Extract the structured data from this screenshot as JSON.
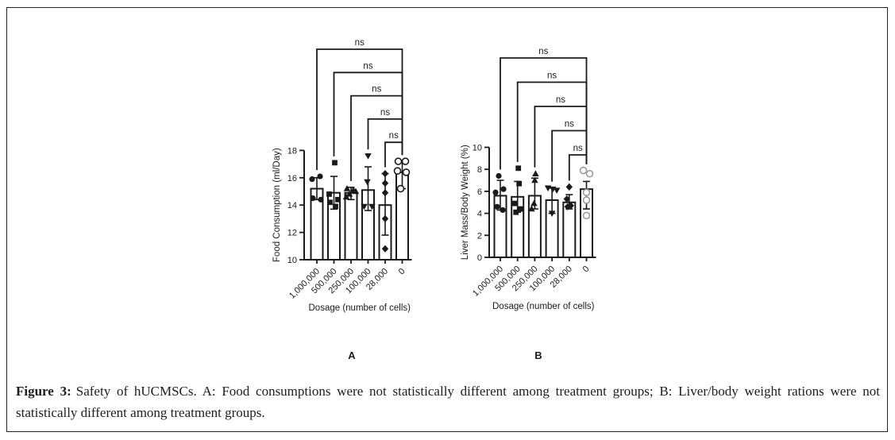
{
  "figure": {
    "caption": {
      "prefix": "Figure 3:",
      "body": "Safety of hUCMSCs. A: Food consumptions were not statistically different among treatment groups; B: Liver/body weight rations were not statistically different among treatment groups."
    }
  },
  "chart_data": [
    {
      "panel_label": "A",
      "type": "bar",
      "ylabel": "Food Consumption (ml/Day)",
      "xlabel": "Dosage (number of cells)",
      "categories": [
        "1,000,000",
        "500,000",
        "250,000",
        "100,000",
        "28,000",
        "0"
      ],
      "ylim": [
        10,
        18
      ],
      "yticks": [
        10,
        12,
        14,
        16,
        18
      ],
      "colors": {
        "bar_fill": "#ffffff",
        "stroke": "#1a1a1a",
        "open_marker": "#1a1a1a"
      },
      "bars": [
        {
          "category": "1,000,000",
          "mean": 15.2,
          "err": [
            14.4,
            16.0
          ],
          "marker": "circle",
          "points": [
            15.9,
            16.1,
            14.5,
            14.4
          ],
          "jitter": [
            -6,
            4,
            -5,
            5
          ]
        },
        {
          "category": "500,000",
          "mean": 14.9,
          "err": [
            13.7,
            16.1
          ],
          "marker": "square",
          "points": [
            17.1,
            14.8,
            14.4,
            14.2,
            13.9
          ],
          "jitter": [
            1,
            -6,
            5,
            -5,
            2
          ]
        },
        {
          "category": "250,000",
          "mean": 14.9,
          "err": [
            14.4,
            15.3
          ],
          "marker": "triangle",
          "points": [
            15.2,
            15.1,
            15.0,
            14.8,
            14.6
          ],
          "jitter": [
            -5,
            3,
            6,
            -2,
            -6
          ]
        },
        {
          "category": "100,000",
          "mean": 15.1,
          "err": [
            13.6,
            16.8
          ],
          "marker": "triangle-down",
          "points": [
            17.6,
            15.7,
            13.9,
            13.9
          ],
          "jitter": [
            0,
            -1,
            -5,
            5
          ]
        },
        {
          "category": "28,000",
          "mean": 14.0,
          "err": [
            11.8,
            16.3
          ],
          "marker": "diamond",
          "points": [
            16.3,
            15.6,
            14.9,
            13.0,
            10.8
          ],
          "jitter": [
            0,
            0,
            0,
            0,
            0
          ]
        },
        {
          "category": "0",
          "mean": 16.4,
          "err": [
            15.2,
            17.2
          ],
          "marker": "circle-open",
          "points": [
            17.2,
            17.2,
            16.5,
            16.4,
            15.2
          ],
          "jitter": [
            -5,
            4,
            -6,
            5,
            -2
          ]
        }
      ],
      "ns_brackets": [
        {
          "from": 0,
          "to": 5,
          "label": "ns"
        },
        {
          "from": 1,
          "to": 5,
          "label": "ns"
        },
        {
          "from": 2,
          "to": 5,
          "label": "ns"
        },
        {
          "from": 3,
          "to": 5,
          "label": "ns"
        },
        {
          "from": 4,
          "to": 5,
          "label": "ns"
        }
      ]
    },
    {
      "panel_label": "B",
      "type": "bar",
      "ylabel": "Liver Mass/Body Weight (%)",
      "xlabel": "Dosage (number of cells)",
      "categories": [
        "1,000,000",
        "500,000",
        "250,000",
        "100,000",
        "28,000",
        "0"
      ],
      "ylim": [
        0,
        10
      ],
      "yticks": [
        0,
        2,
        4,
        6,
        8,
        10
      ],
      "colors": {
        "bar_fill": "#ffffff",
        "stroke": "#1a1a1a",
        "open_marker": "#9b9b9b"
      },
      "bars": [
        {
          "category": "1,000,000",
          "mean": 5.6,
          "err": [
            4.3,
            7.0
          ],
          "marker": "circle",
          "points": [
            7.4,
            6.2,
            5.9,
            4.6,
            4.3
          ],
          "jitter": [
            -2,
            4,
            -6,
            -4,
            3
          ]
        },
        {
          "category": "500,000",
          "mean": 5.5,
          "err": [
            4.1,
            6.9
          ],
          "marker": "square",
          "points": [
            8.1,
            6.7,
            4.9,
            4.4,
            4.1
          ],
          "jitter": [
            1,
            2,
            -4,
            4,
            -2
          ]
        },
        {
          "category": "250,000",
          "mean": 5.6,
          "err": [
            4.4,
            7.2
          ],
          "marker": "triangle",
          "points": [
            7.6,
            7.0,
            4.9,
            4.4
          ],
          "jitter": [
            1,
            0,
            -1,
            -4
          ]
        },
        {
          "category": "100,000",
          "mean": 5.2,
          "err": [
            4.0,
            6.3
          ],
          "marker": "triangle-down",
          "points": [
            6.3,
            6.2,
            6.1,
            4.0
          ],
          "jitter": [
            -5,
            1,
            6,
            0
          ]
        },
        {
          "category": "28,000",
          "mean": 5.0,
          "err": [
            4.4,
            5.7
          ],
          "marker": "diamond",
          "points": [
            6.4,
            5.3,
            4.7,
            4.6
          ],
          "jitter": [
            0,
            -3,
            2,
            -2
          ]
        },
        {
          "category": "0",
          "mean": 6.2,
          "err": [
            4.4,
            6.9
          ],
          "marker": "circle-open",
          "points": [
            7.9,
            7.6,
            5.9,
            5.2,
            3.8
          ],
          "jitter": [
            -4,
            4,
            0,
            0,
            0
          ]
        }
      ],
      "ns_brackets": [
        {
          "from": 0,
          "to": 5,
          "label": "ns"
        },
        {
          "from": 1,
          "to": 5,
          "label": "ns"
        },
        {
          "from": 2,
          "to": 5,
          "label": "ns"
        },
        {
          "from": 3,
          "to": 5,
          "label": "ns"
        },
        {
          "from": 4,
          "to": 5,
          "label": "ns"
        }
      ]
    }
  ]
}
